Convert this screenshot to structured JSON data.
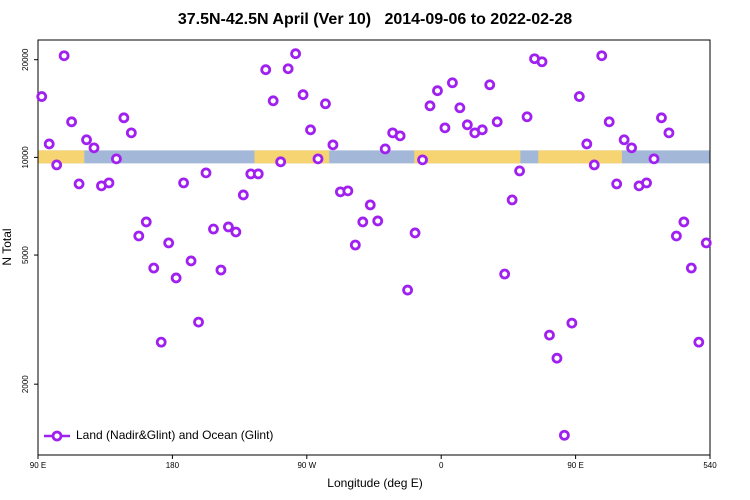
{
  "chart_data": {
    "type": "scatter",
    "title": "37.5N-42.5N April (Ver 10)   2014-09-06 to 2022-02-28",
    "x_label": "Longitude (deg E)",
    "y_label": "N Total",
    "log_y": true,
    "legend": "bottom-left",
    "xlim": [
      90,
      540
    ],
    "xticks": [
      {
        "value": 90,
        "label": "90 E"
      },
      180,
      {
        "value": 270,
        "label": "90 W"
      },
      {
        "value": 360,
        "label": "0"
      },
      {
        "value": 450,
        "label": "90 E"
      },
      540
    ],
    "ylim": [
      1210,
      23000
    ],
    "yticks": [
      2000,
      5000,
      10000,
      20000
    ],
    "band": {
      "value": 10000,
      "ocean_color": "#a3b8d8",
      "land_color": "#f7d472",
      "land": [
        [
          90,
          121
        ],
        [
          235,
          285
        ],
        [
          342,
          413
        ],
        [
          425,
          481
        ]
      ]
    },
    "series": [
      {
        "name": "Land (Nadir&Glint) and Ocean (Glint)",
        "color": "#a020f0",
        "x": [
          92.5,
          97.5,
          102.5,
          107.5,
          112.5,
          117.5,
          122.5,
          127.5,
          132.5,
          137.5,
          142.5,
          147.5,
          152.5,
          157.5,
          162.5,
          167.5,
          172.5,
          177.5,
          182.5,
          187.5,
          192.5,
          197.5,
          202.5,
          207.5,
          212.5,
          217.5,
          222.5,
          227.5,
          232.5,
          237.5,
          242.5,
          247.5,
          252.5,
          257.5,
          262.5,
          267.5,
          272.5,
          277.5,
          282.5,
          287.5,
          292.5,
          297.5,
          302.5,
          307.5,
          312.5,
          317.5,
          322.5,
          327.5,
          332.5,
          337.5,
          342.5,
          347.5,
          352.5,
          357.5,
          362.5,
          367.5,
          372.5,
          377.5,
          382.5,
          387.5,
          392.5,
          397.5,
          402.5,
          407.5,
          412.5,
          417.5,
          422.5,
          427.5,
          432.5,
          437.5,
          442.5,
          447.5,
          452.5,
          457.5,
          462.5,
          467.5,
          472.5,
          477.5,
          482.5,
          487.5,
          492.5,
          497.5,
          502.5,
          507.5,
          512.5,
          517.5,
          522.5,
          527.5,
          532.5,
          537.5
        ],
        "values": [
          15400,
          11000,
          9480,
          20570,
          12870,
          8285,
          11330,
          10700,
          8170,
          8345,
          9895,
          13240,
          11900,
          5725,
          6325,
          4560,
          2695,
          5450,
          4250,
          8345,
          4795,
          3107,
          8960,
          6015,
          4497,
          6105,
          5890,
          7660,
          8895,
          8895,
          18630,
          14940,
          9690,
          18760,
          20870,
          15600,
          12160,
          9895,
          14630,
          10930,
          7830,
          7885,
          5370,
          6325,
          7137,
          6370,
          10620,
          11900,
          11650,
          3900,
          5850,
          9825,
          14420,
          16050,
          12330,
          16980,
          14220,
          12600,
          11900,
          12160,
          16740,
          12870,
          4370,
          7395,
          9085,
          13340,
          20140,
          19710,
          2833,
          2405,
          1392,
          3085,
          15400,
          11000,
          9480,
          20570,
          12870,
          8285,
          11330,
          10700,
          8170,
          8345,
          9895,
          13240,
          11900,
          5725,
          6325,
          4560,
          2695,
          5450
        ]
      }
    ]
  }
}
